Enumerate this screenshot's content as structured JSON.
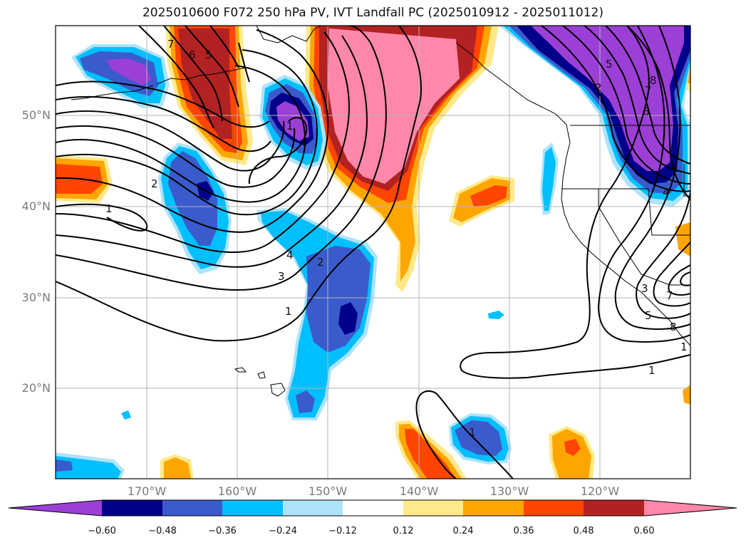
{
  "title": "2025010600 F072 250 hPa PV, IVT Landfall PC (2025010912 - 2025011012)",
  "latitude_labels": [
    "50°N",
    "40°N",
    "30°N",
    "20°N"
  ],
  "longitude_labels": [
    "170°W",
    "160°W",
    "150°W",
    "140°W",
    "130°W",
    "120°W"
  ],
  "contour_labels": [
    "7",
    "6",
    "5",
    "2",
    "1",
    "4",
    "3",
    "2",
    "1",
    "1",
    "1",
    "5",
    "2",
    "7",
    "8",
    "6",
    "4",
    "3",
    "5",
    "1",
    "7",
    "8",
    "1"
  ],
  "colorbar": {
    "tick_labels": [
      "−0.60",
      "−0.48",
      "−0.36",
      "−0.24",
      "−0.12",
      "0.12",
      "0.24",
      "0.36",
      "0.48",
      "0.60"
    ],
    "colors": [
      "#9b3fd6",
      "#00008b",
      "#3a5bcc",
      "#00bfff",
      "#aee3fb",
      "#ffffff",
      "#ffe98a",
      "#ffa500",
      "#ff4500",
      "#b22222",
      "#ff88aa"
    ]
  },
  "colors": {
    "positive_strong": "#ff88aa",
    "positive_high": "#b22222",
    "positive_mid": "#ff4500",
    "positive_low": "#ffa500",
    "positive_weak": "#ffe98a",
    "negative_weak": "#aee3fb",
    "negative_low": "#00bfff",
    "negative_mid": "#3a5bcc",
    "negative_high": "#00008b",
    "negative_strong": "#9b3fd6"
  }
}
